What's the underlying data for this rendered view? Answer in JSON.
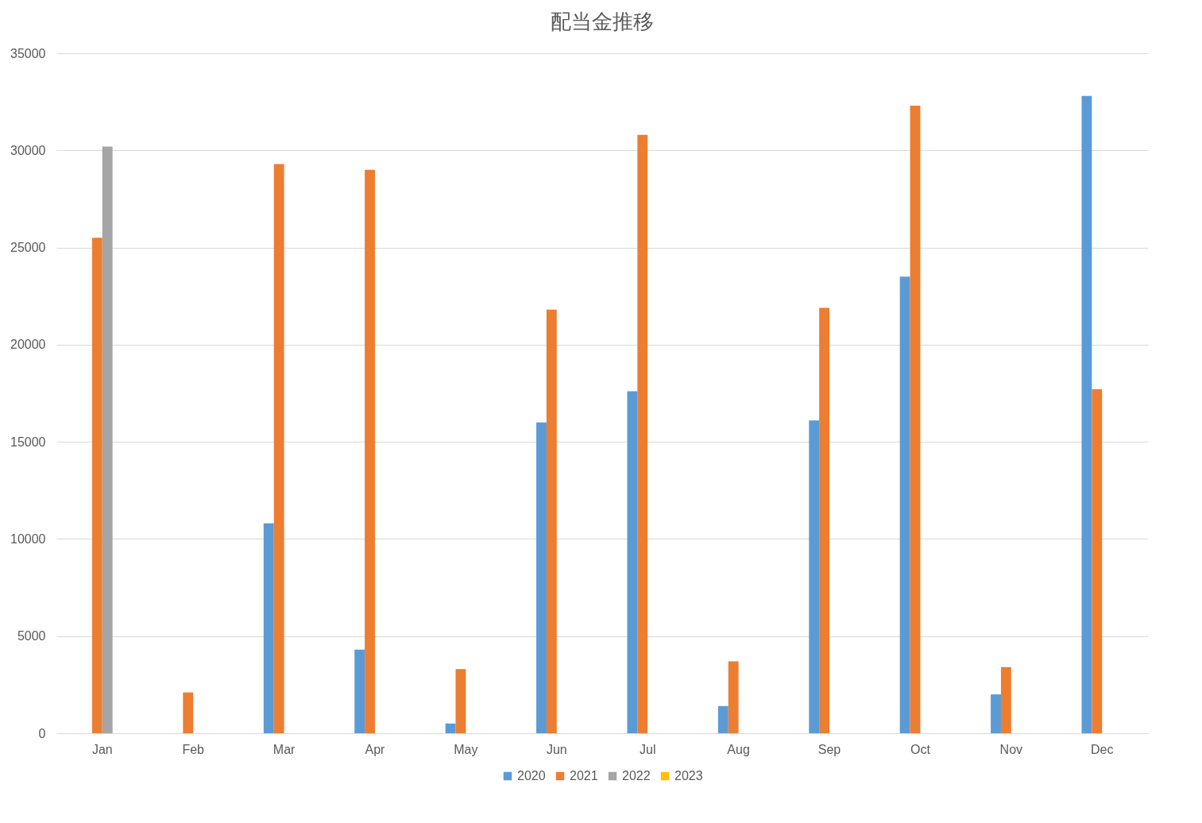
{
  "chart_data": {
    "type": "bar",
    "title": "配当金推移",
    "categories": [
      "Jan",
      "Feb",
      "Mar",
      "Apr",
      "May",
      "Jun",
      "Jul",
      "Aug",
      "Sep",
      "Oct",
      "Nov",
      "Dec"
    ],
    "series": [
      {
        "name": "2020",
        "color": "#5b9bd5",
        "values": [
          null,
          null,
          10800,
          4300,
          500,
          16000,
          17600,
          1400,
          16100,
          23500,
          2000,
          32800
        ]
      },
      {
        "name": "2021",
        "color": "#ed7d31",
        "values": [
          25500,
          2100,
          29300,
          29000,
          3300,
          21800,
          30800,
          3700,
          21900,
          32300,
          3400,
          17700
        ]
      },
      {
        "name": "2022",
        "color": "#a5a5a5",
        "values": [
          30200,
          null,
          null,
          null,
          null,
          null,
          null,
          null,
          null,
          null,
          null,
          null
        ]
      },
      {
        "name": "2023",
        "color": "#ffc000",
        "values": [
          null,
          null,
          null,
          null,
          null,
          null,
          null,
          null,
          null,
          null,
          null,
          null
        ]
      }
    ],
    "ylim": [
      0,
      35000
    ],
    "yticks": [
      0,
      5000,
      10000,
      15000,
      20000,
      25000,
      30000,
      35000
    ],
    "grid": "y",
    "legend": "bottom"
  }
}
